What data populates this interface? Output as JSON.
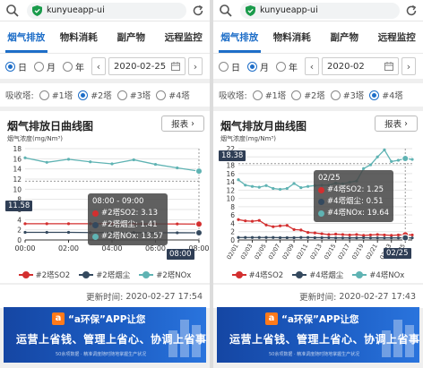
{
  "colors": {
    "accent": "#1e6ec8",
    "so2": "#d32f2f",
    "dust": "#34495e",
    "nox": "#5fb3b3",
    "banner": "#1546a3"
  },
  "icons": {
    "search": "search-icon",
    "secure": "shield-icon",
    "reload": "reload-icon",
    "calendar": "calendar-icon",
    "logo": "app-logo-icon"
  },
  "browser": {
    "url": "kunyueapp-ui"
  },
  "tabs": [
    "烟气排放",
    "物料消耗",
    "副产物",
    "远程监控"
  ],
  "period": {
    "options": [
      "日",
      "月",
      "年"
    ],
    "prev": "‹",
    "next": "›"
  },
  "tower_label": "吸收塔:",
  "towers": [
    "#1塔",
    "#2塔",
    "#3塔",
    "#4塔"
  ],
  "report_label": "报表",
  "updated_label": "更新时间:",
  "banner": {
    "logo_char": "a",
    "line1": "“a环保”APP让您",
    "line2": "运营上省钱、管理上省心、协调上省事",
    "line3": "50余项数据 · 精准调度随时随地掌握生产状况"
  },
  "left": {
    "date": "2020-02-25",
    "selected_period": 0,
    "selected_tower": 1,
    "title": "烟气排放日曲线图",
    "updated": "2020-02-27 17:54",
    "chart_data": {
      "type": "line",
      "title": "烟气排放日曲线图",
      "ylabel": "烟气浓度(mg/Nm³)",
      "ylim": [
        0,
        18
      ],
      "yticks": [
        0,
        2,
        4,
        6,
        8,
        10,
        12,
        14,
        16,
        18
      ],
      "x": [
        "00:00",
        "01:00",
        "02:00",
        "03:00",
        "04:00",
        "05:00",
        "06:00",
        "07:00",
        "08:00"
      ],
      "xticks": [
        "00:00",
        "02:00",
        "04:00",
        "06:00",
        "08:00"
      ],
      "series": [
        {
          "name": "#2塔SO2",
          "color": "#d32f2f",
          "values": [
            3.2,
            3.2,
            3.2,
            3.2,
            3.2,
            3.15,
            3.15,
            3.15,
            3.13
          ]
        },
        {
          "name": "#2塔烟尘",
          "color": "#34495e",
          "values": [
            1.5,
            1.5,
            1.5,
            1.45,
            1.45,
            1.45,
            1.42,
            1.42,
            1.41
          ]
        },
        {
          "name": "#2塔NOx",
          "color": "#5fb3b3",
          "values": [
            16.2,
            15.3,
            15.9,
            15.4,
            15.0,
            15.8,
            14.9,
            14.2,
            13.57
          ]
        }
      ],
      "crosshair_value": "11.58",
      "crosshair_x": "08:00",
      "tooltip": {
        "header": "08:00 - 09:00",
        "rows": [
          "#2塔SO2: 3.13",
          "#2塔烟尘: 1.41",
          "#2塔NOx: 13.57"
        ]
      }
    }
  },
  "right": {
    "date": "2020-02",
    "selected_period": 1,
    "selected_tower": 3,
    "title": "烟气排放月曲线图",
    "updated": "2020-02-27 17:43",
    "chart_data": {
      "type": "line",
      "title": "烟气排放月曲线图",
      "ylabel": "烟气浓度(mg/Nm³)",
      "ylim": [
        0,
        22
      ],
      "yticks": [
        0,
        2,
        4,
        6,
        8,
        10,
        12,
        14,
        16,
        18,
        20,
        22
      ],
      "x": [
        "02/01",
        "02/02",
        "02/03",
        "02/04",
        "02/05",
        "02/06",
        "02/07",
        "02/08",
        "02/09",
        "02/10",
        "02/11",
        "02/12",
        "02/13",
        "02/14",
        "02/15",
        "02/16",
        "02/17",
        "02/18",
        "02/19",
        "02/20",
        "02/21",
        "02/22",
        "02/23",
        "02/24",
        "02/25",
        "02/26"
      ],
      "xticks": [
        "02/01",
        "02/03",
        "02/05",
        "02/07",
        "02/09",
        "02/11",
        "02/13",
        "02/15",
        "02/17",
        "02/19",
        "02/21",
        "02/23",
        "02/25"
      ],
      "series": [
        {
          "name": "#4塔SO2",
          "color": "#d32f2f",
          "values": [
            4.9,
            4.6,
            4.5,
            4.7,
            3.6,
            3.2,
            3.4,
            3.5,
            2.5,
            2.4,
            1.8,
            1.7,
            1.5,
            1.3,
            1.4,
            1.3,
            1.2,
            1.3,
            1.1,
            1.2,
            1.3,
            1.2,
            1.1,
            1.2,
            1.25,
            1.2
          ]
        },
        {
          "name": "#4塔烟尘",
          "color": "#34495e",
          "values": [
            0.6,
            0.6,
            0.6,
            0.6,
            0.6,
            0.6,
            0.55,
            0.55,
            0.55,
            0.6,
            0.6,
            0.55,
            0.55,
            0.55,
            0.5,
            0.5,
            0.5,
            0.5,
            0.55,
            0.5,
            0.5,
            0.5,
            0.5,
            0.5,
            0.51,
            0.5
          ]
        },
        {
          "name": "#4塔NOx",
          "color": "#5fb3b3",
          "values": [
            14.5,
            13.2,
            12.9,
            12.7,
            13.1,
            12.4,
            12.2,
            12.4,
            13.6,
            12.6,
            12.9,
            13.1,
            13.2,
            13.2,
            13.7,
            13.5,
            13.9,
            14.2,
            17.2,
            18.1,
            20.0,
            21.7,
            18.9,
            19.2,
            19.64,
            19.4
          ]
        }
      ],
      "crosshair_value": "18.38",
      "crosshair_x": "02/25",
      "tooltip": {
        "header": "02/25",
        "rows": [
          "#4塔SO2: 1.25",
          "#4塔烟尘: 0.51",
          "#4塔NOx: 19.64"
        ]
      }
    }
  }
}
